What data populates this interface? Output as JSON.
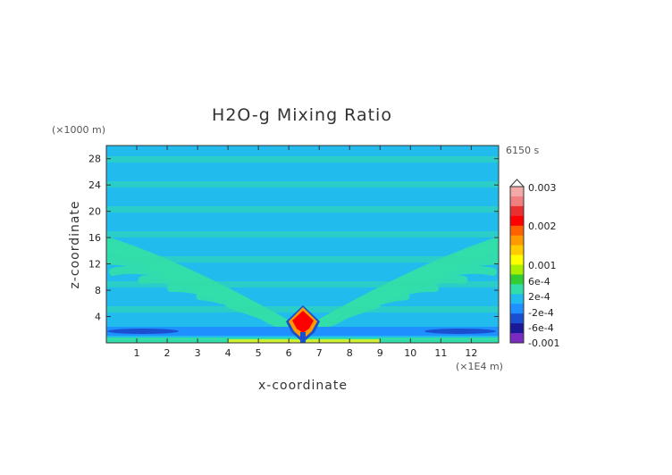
{
  "chart_data": {
    "type": "heatmap",
    "title": "H2O-g Mixing Ratio",
    "xlabel": "x-coordinate",
    "ylabel": "z-coordinate",
    "x_unit": "(×1E4 m)",
    "y_unit": "(×1000 m)",
    "time_label": "6150 s",
    "xlim": [
      0,
      12.9
    ],
    "ylim": [
      0,
      30
    ],
    "x_ticks": [
      "1",
      "2",
      "3",
      "4",
      "5",
      "6",
      "7",
      "8",
      "9",
      "10",
      "11",
      "12"
    ],
    "y_ticks": [
      "4",
      "8",
      "12",
      "16",
      "20",
      "24",
      "28"
    ],
    "colorbar": {
      "labels": [
        "0.003",
        "0.002",
        "0.001",
        "6e-4",
        "2e-4",
        "-2e-4",
        "-6e-4",
        "-0.001"
      ],
      "colors": [
        "#f4a9a9",
        "#f08080",
        "#e83030",
        "#ff0000",
        "#ff6000",
        "#ff9900",
        "#ffcc00",
        "#ffff00",
        "#aaee00",
        "#33cc33",
        "#33ddaa",
        "#22bbee",
        "#1e90ff",
        "#1a50d0",
        "#1a1a99",
        "#7a2bbf"
      ]
    }
  }
}
